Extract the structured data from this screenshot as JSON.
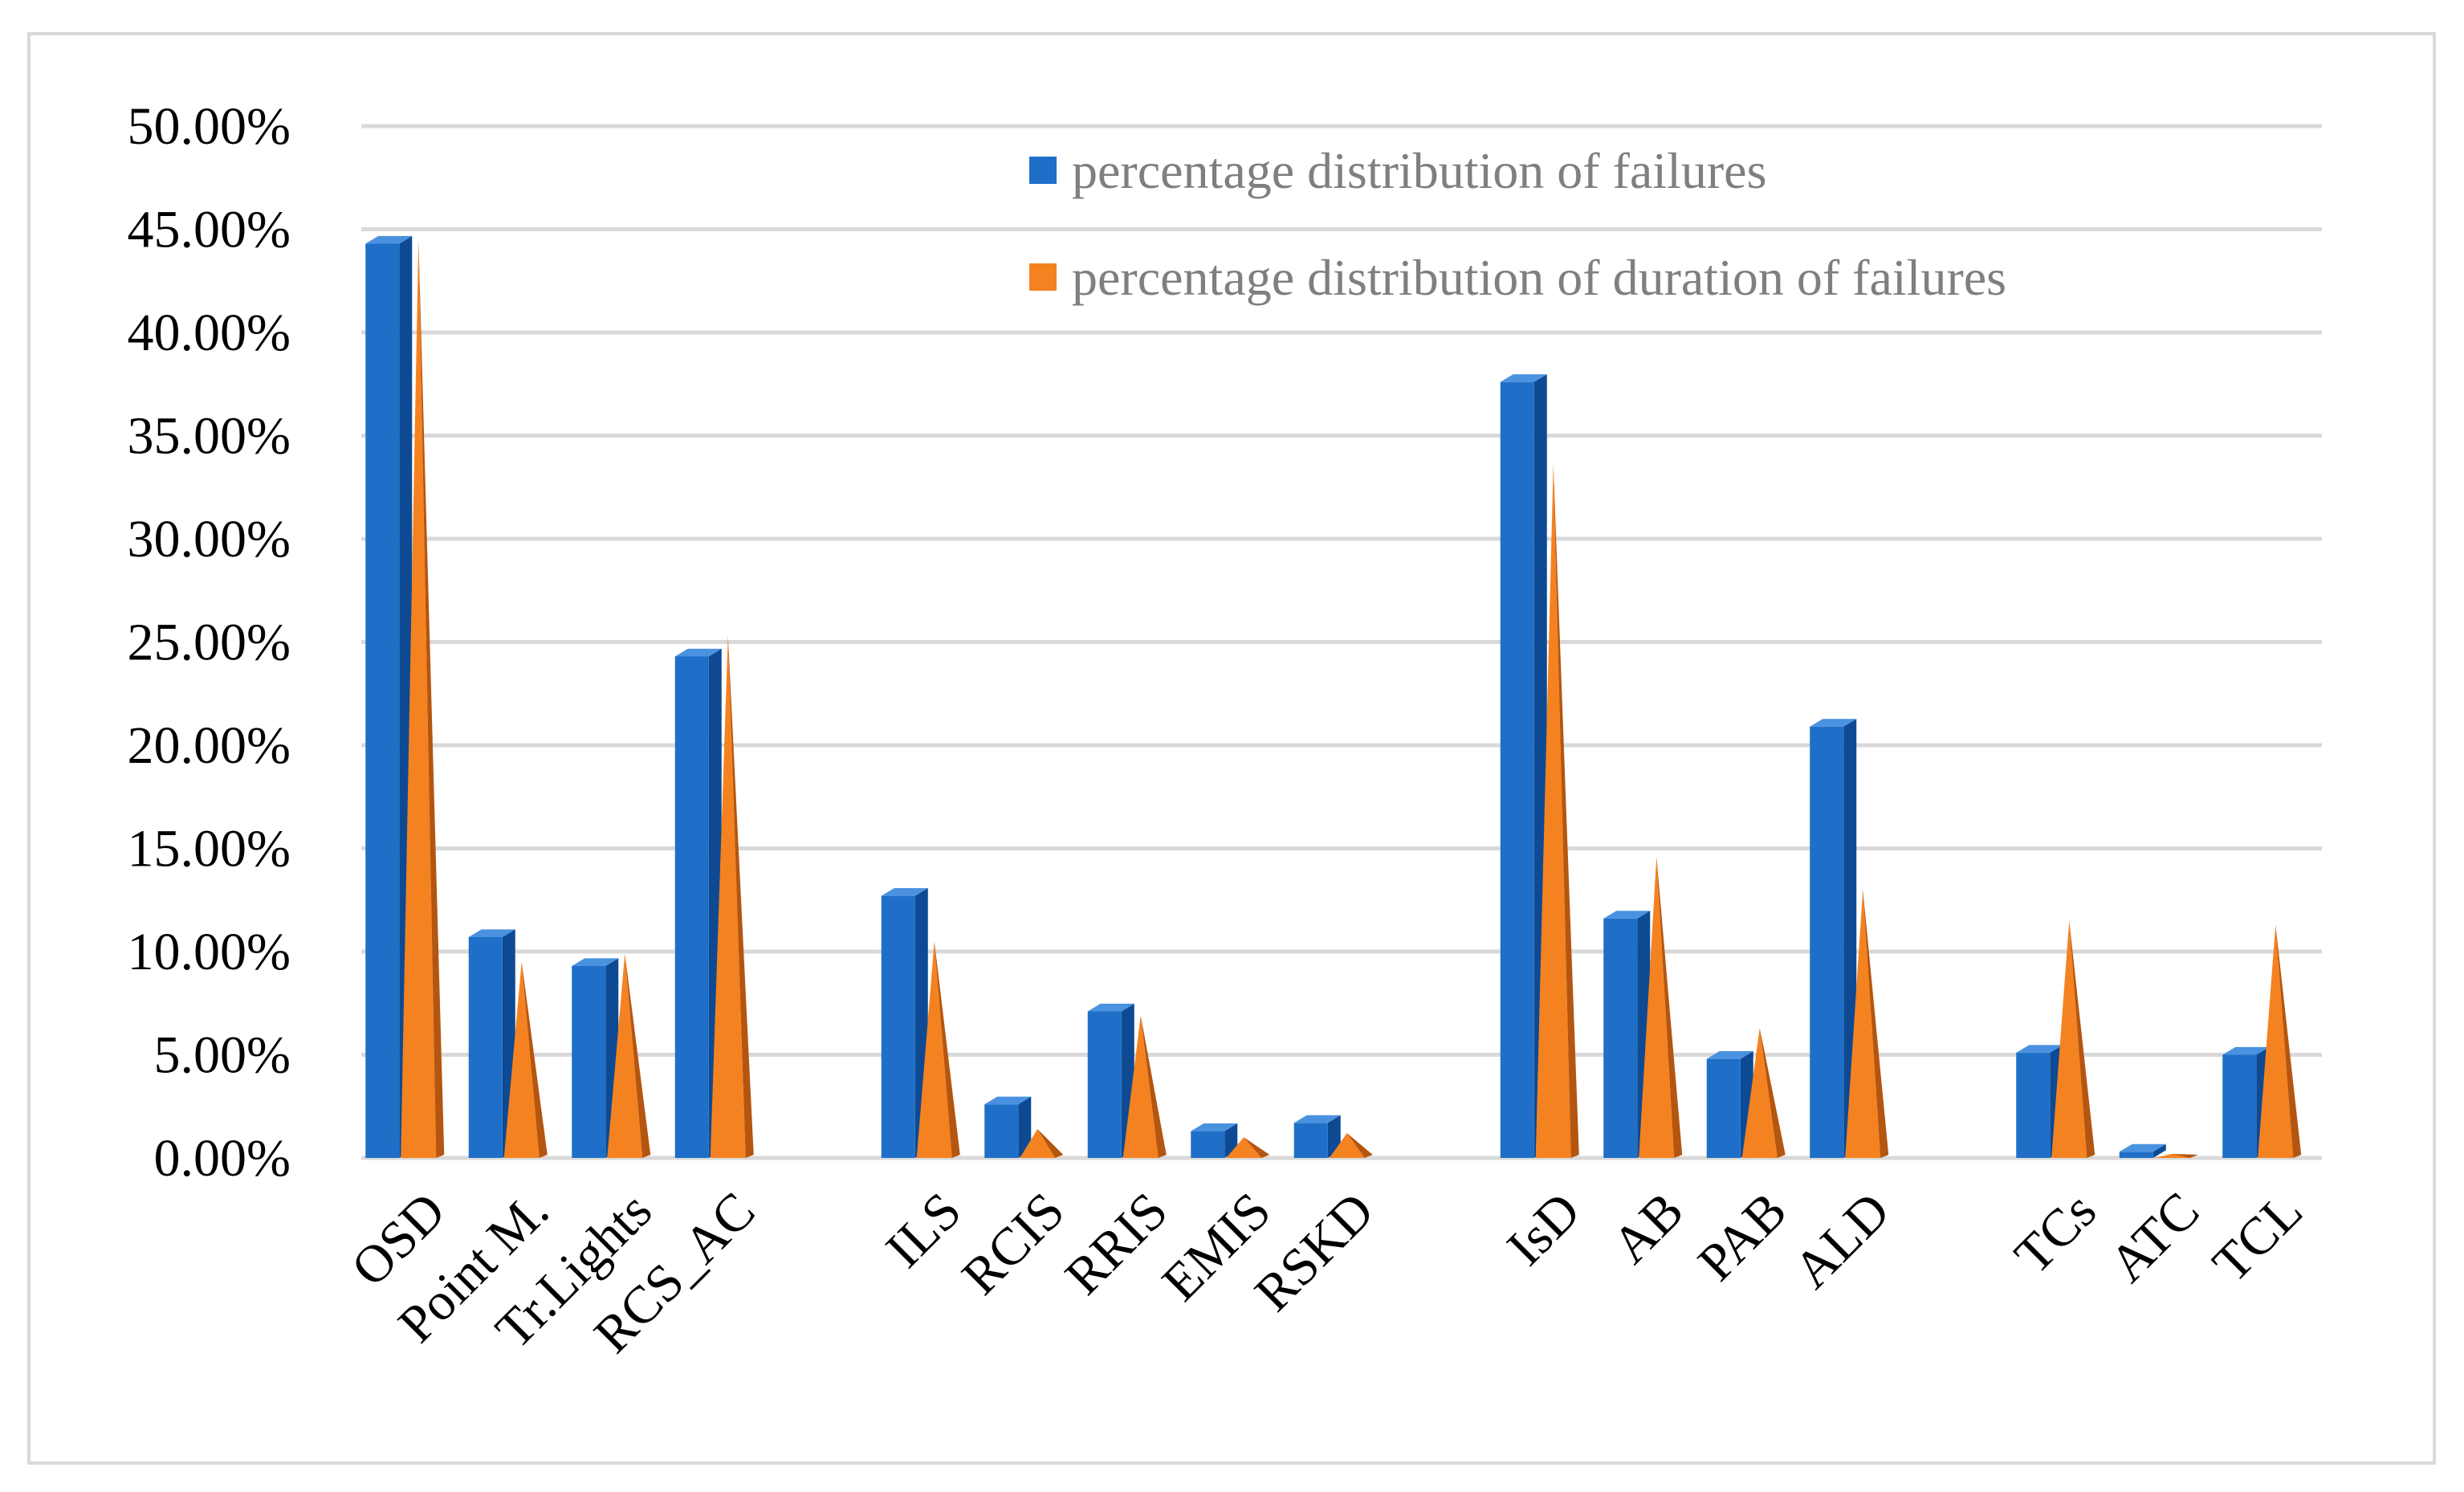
{
  "chart_data": {
    "type": "bar",
    "style": "3d-column-and-cone",
    "categories": [
      "OSD",
      "Point M.",
      "Tr.Lights",
      "RCS_AC",
      "",
      "ILS",
      "RCIS",
      "RRIS",
      "EMIS",
      "RSKD",
      "",
      "IsD",
      "AB",
      "PAB",
      "ALD",
      "",
      "TCs",
      "ATC",
      "TCL"
    ],
    "series": [
      {
        "name": "percentage distribution of failures",
        "shape": "column",
        "color": "#1f6fc8",
        "values": [
          0.443,
          0.107,
          0.093,
          0.243,
          null,
          0.127,
          0.026,
          0.071,
          0.013,
          0.017,
          null,
          0.376,
          0.116,
          0.048,
          0.209,
          null,
          0.051,
          0.003,
          0.05
        ]
      },
      {
        "name": "percentage distribution of duration of failures",
        "shape": "cone",
        "color": "#f58220",
        "values": [
          0.445,
          0.095,
          0.099,
          0.253,
          null,
          0.105,
          0.014,
          0.069,
          0.01,
          0.012,
          null,
          0.336,
          0.146,
          0.063,
          0.13,
          null,
          0.115,
          0.002,
          0.113
        ]
      }
    ],
    "yticks": [
      "0.00%",
      "5.00%",
      "10.00%",
      "15.00%",
      "20.00%",
      "25.00%",
      "30.00%",
      "35.00%",
      "40.00%",
      "45.00%",
      "50.00%"
    ],
    "ylim": [
      0,
      0.5
    ],
    "grid": true,
    "legend_position": "top-right",
    "title": "",
    "xlabel": "",
    "ylabel": "",
    "colors": {
      "failures": "#1f6fc8",
      "failures_side": "#0d4a93",
      "failures_top": "#4a92e0",
      "duration": "#f58220",
      "duration_shadow": "#b45510",
      "grid": "#d9d9d9",
      "frame": "#d9d9d9",
      "legend_text": "#7f7f7f"
    }
  }
}
